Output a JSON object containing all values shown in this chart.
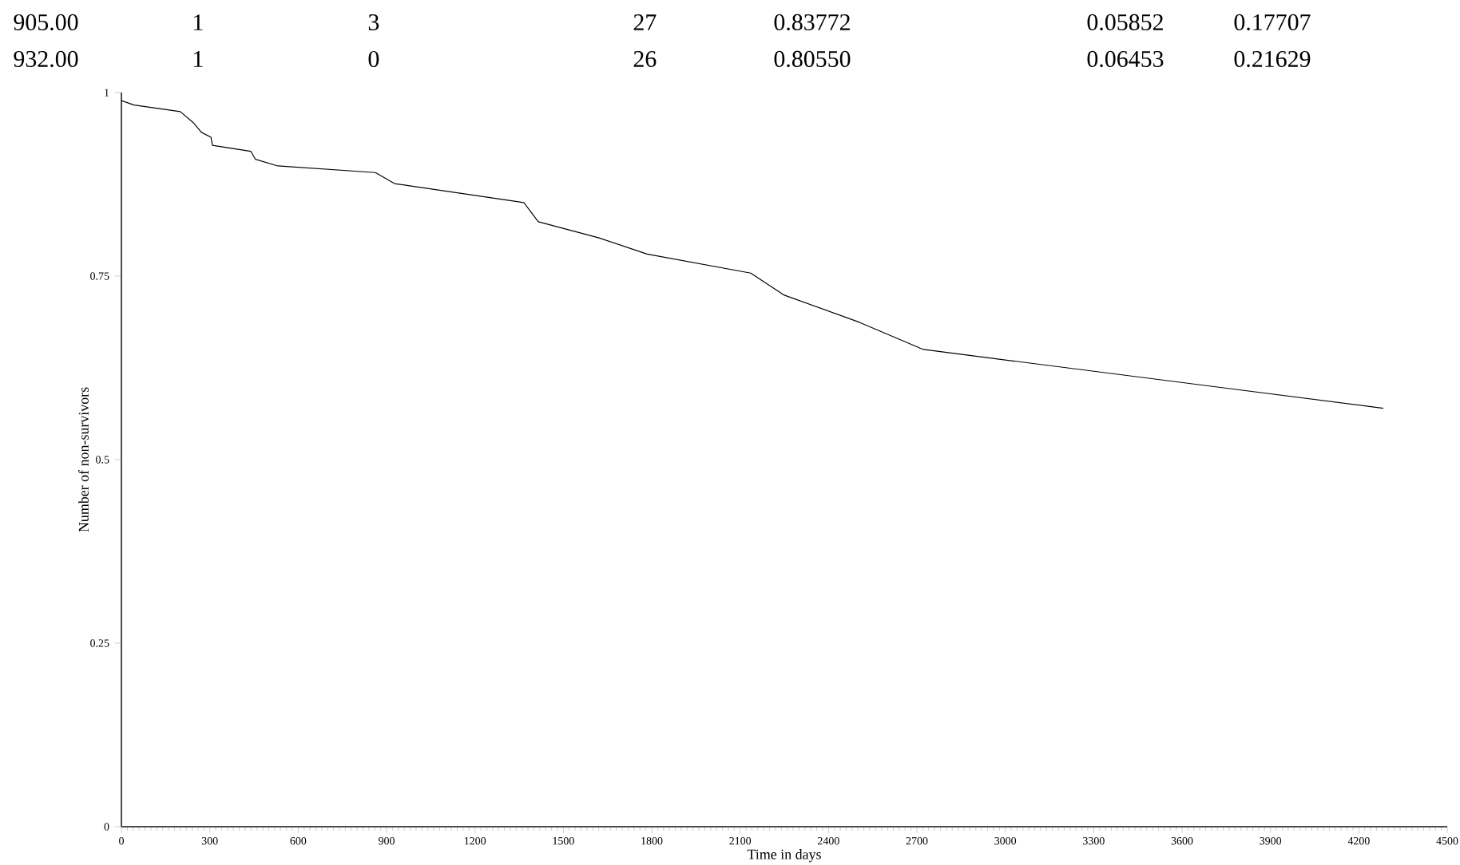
{
  "chart_data": {
    "type": "line",
    "xlabel": "Time in days",
    "ylabel": "Number of non-survivors",
    "annotations": [
      "905.00",
      "1",
      "3",
      "27",
      "0.83772",
      "0.05852",
      "0.17707",
      "932.00",
      "1",
      "0",
      "26",
      "0.80550",
      "0.06453",
      "0.21629"
    ],
    "x": [
      0,
      43,
      200,
      244,
      271,
      304,
      309,
      439,
      455,
      531,
      862,
      927,
      1366,
      1415,
      1621,
      1784,
      2136,
      2250,
      2505,
      2722,
      4283
    ],
    "values": [
      0.989,
      0.983,
      0.974,
      0.959,
      0.946,
      0.939,
      0.928,
      0.92,
      0.909,
      0.9,
      0.891,
      0.876,
      0.85,
      0.824,
      0.802,
      0.78,
      0.754,
      0.724,
      0.687,
      0.65,
      0.57
    ],
    "color": "#000000",
    "xlim": [
      0,
      4500
    ],
    "xticks": [
      0,
      300,
      600,
      900,
      1200,
      1500,
      1800,
      2100,
      2400,
      2700,
      3000,
      3300,
      3600,
      3900,
      4200,
      4500
    ],
    "ylim": [
      0,
      1
    ],
    "yticks": [
      0,
      0.25,
      0.5,
      0.75,
      1
    ]
  }
}
